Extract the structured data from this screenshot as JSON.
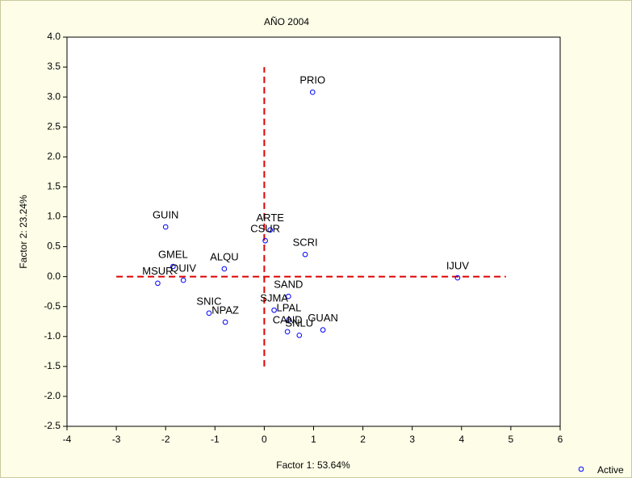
{
  "chart_data": {
    "type": "scatter",
    "title": "AÑO 2004",
    "x_label": "Factor 1: 53.64%",
    "y_label": "Factor 2: 23.24%",
    "xlim": [
      -4,
      6
    ],
    "ylim": [
      -2.5,
      4.0
    ],
    "xticks": [
      -4,
      -3,
      -2,
      -1,
      0,
      1,
      2,
      3,
      4,
      5,
      6
    ],
    "yticks": [
      {
        "value": 4.0,
        "label": "4.0"
      },
      3.5,
      {
        "value": 3.0,
        "label": "3.0"
      },
      2.5,
      {
        "value": 2.0,
        "label": "2.0"
      },
      1.5,
      {
        "value": 1.0,
        "label": "1.0"
      },
      0.5,
      {
        "value": 0.0,
        "label": "0.0"
      },
      -0.5,
      {
        "value": -1.0,
        "label": "-1.0"
      },
      -1.5,
      {
        "value": -2.0,
        "label": "-2.0"
      },
      -2.5
    ],
    "series": [
      {
        "name": "Active",
        "color": "#0000ff",
        "labels": [
          "PRIO",
          "IJUV",
          "GUIN",
          "ARTE",
          "CSUR",
          "SCRI",
          "ALQU",
          "GMEL",
          "QUIV",
          "MSUR",
          "SAND",
          "SJMA",
          "LPAL",
          "CAND",
          "SNLU",
          "GUAN",
          "SNIC",
          "NPAZ"
        ],
        "x": [
          0.98,
          3.92,
          -2.0,
          0.12,
          0.02,
          0.83,
          -0.81,
          -1.85,
          -1.64,
          -2.16,
          0.49,
          0.2,
          0.5,
          0.47,
          0.71,
          1.19,
          -1.12,
          -0.79
        ],
        "values": [
          3.08,
          -0.02,
          0.83,
          0.78,
          0.6,
          0.37,
          0.13,
          0.17,
          -0.06,
          -0.11,
          -0.33,
          -0.56,
          -0.72,
          -0.92,
          -0.98,
          -0.89,
          -0.61,
          -0.76
        ]
      }
    ],
    "reference_lines": [
      {
        "x": [
          -3,
          4.9
        ],
        "y": [
          0,
          0
        ]
      },
      {
        "x": [
          0,
          0
        ],
        "y": [
          -1.5,
          3.5
        ]
      }
    ],
    "reference_color": "#dd0000"
  }
}
